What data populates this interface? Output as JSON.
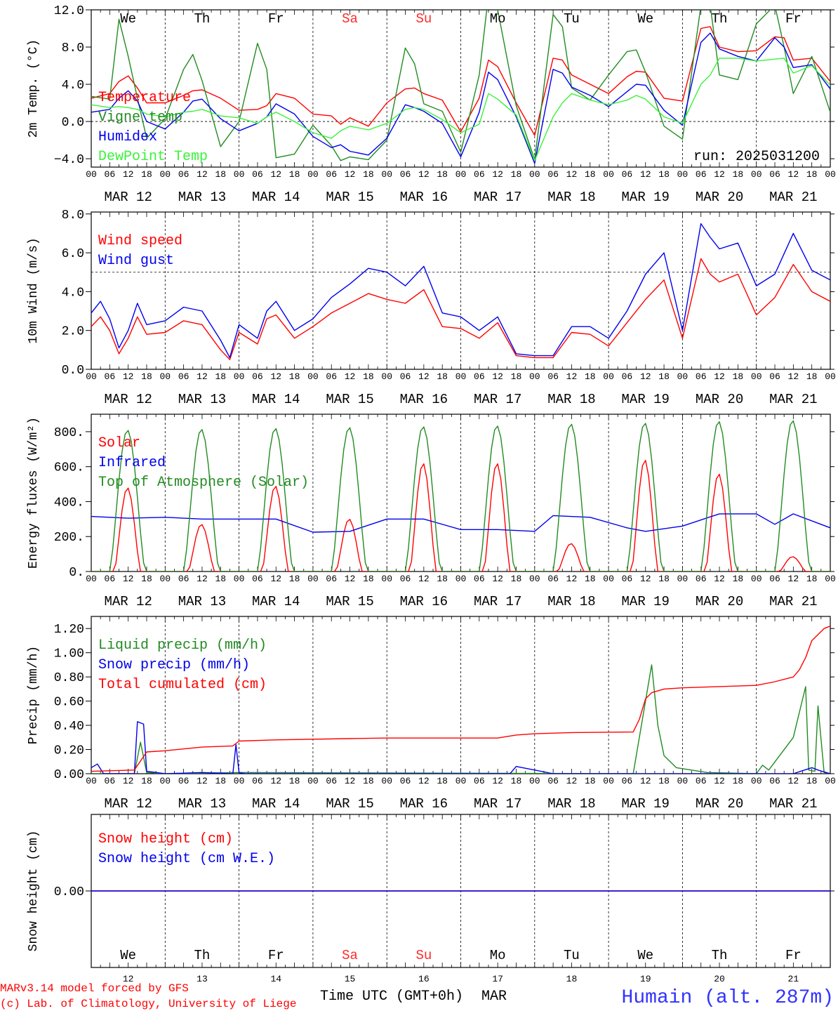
{
  "footer": {
    "credit_line1": "MARv3.14 model forced by GFS",
    "credit_line2": "(c) Lab. of Climatology, University of Liege",
    "xaxis_title": "Time UTC (GMT+0h)",
    "month": "MAR",
    "station": "Humain (alt. 287m)"
  },
  "run_label": "run: 2025031200",
  "days": {
    "dates": [
      "MAR 12",
      "MAR 13",
      "MAR 14",
      "MAR 15",
      "MAR 16",
      "MAR 17",
      "MAR 18",
      "MAR 19",
      "MAR 20",
      "MAR 21"
    ],
    "day_numbers": [
      "12",
      "13",
      "14",
      "15",
      "16",
      "17",
      "18",
      "19",
      "20",
      "21"
    ],
    "weekdays": [
      "We",
      "Th",
      "Fr",
      "Sa",
      "Su",
      "Mo",
      "Tu",
      "We",
      "Th",
      "Fr"
    ],
    "weekend_color": "#ff2a2a",
    "normal_color": "#000000",
    "hour_ticks": [
      "00",
      "06",
      "12",
      "18"
    ],
    "final_tick": "00"
  },
  "chart_data": [
    {
      "type": "line",
      "id": "temp",
      "ylabel": "2m Temp. (°C)",
      "ylim": [
        -5,
        12
      ],
      "yticks": [
        12.0,
        8.0,
        4.0,
        0.0,
        -4.0
      ],
      "ytick_labels": [
        "12.0",
        "8.0",
        "4.0",
        "0.0",
        "−4.0"
      ],
      "ref_line": 0,
      "x_hours": [
        0,
        6,
        9,
        12,
        15,
        18,
        24,
        30,
        33,
        36,
        42,
        48,
        54,
        57,
        60,
        66,
        72,
        78,
        81,
        84,
        90,
        96,
        102,
        105,
        108,
        114,
        120,
        126,
        129,
        132,
        138,
        144,
        150,
        153,
        156,
        162,
        168,
        174,
        177,
        180,
        186,
        192,
        198,
        201,
        204,
        210,
        216,
        222,
        225,
        228,
        234,
        240
      ],
      "series": [
        {
          "name": "Temperature",
          "color": "#ff0000",
          "values": [
            2.5,
            3.0,
            4.3,
            4.9,
            3.6,
            2.0,
            2.0,
            2.8,
            3.3,
            3.4,
            2.5,
            1.2,
            1.3,
            1.7,
            3.0,
            2.5,
            0.8,
            0.6,
            -0.3,
            0.4,
            -0.5,
            2.0,
            3.5,
            3.6,
            3.0,
            2.3,
            -1.1,
            2.5,
            6.6,
            5.9,
            2.0,
            -1.5,
            6.8,
            6.6,
            5.0,
            4.0,
            3.0,
            4.8,
            5.4,
            5.3,
            2.5,
            2.2,
            10.0,
            10.2,
            8.0,
            7.5,
            7.6,
            9.1,
            9.0,
            6.6,
            6.8,
            4.3
          ]
        },
        {
          "name": "Vigne temp",
          "color": "#228b22",
          "values": [
            2.7,
            2.4,
            11.0,
            7.0,
            2.5,
            -1.8,
            0.3,
            5.6,
            7.2,
            4.4,
            -2.7,
            0.0,
            8.4,
            5.6,
            -3.9,
            -3.5,
            -0.4,
            -2.6,
            -4.2,
            -3.8,
            -4.1,
            -2.0,
            7.9,
            6.2,
            1.9,
            1.1,
            -3.3,
            5.0,
            13.6,
            12.0,
            1.7,
            -4.1,
            11.5,
            10.2,
            3.6,
            2.3,
            5.0,
            7.5,
            7.7,
            5.3,
            -0.5,
            -1.9,
            12.5,
            12.5,
            5.0,
            4.5,
            10.5,
            12.5,
            8.0,
            3.0,
            7.0,
            1.0
          ]
        },
        {
          "name": "Humidex",
          "color": "#0000ee",
          "values": [
            1.0,
            1.3,
            2.5,
            3.3,
            2.2,
            0.0,
            -0.8,
            1.0,
            2.2,
            2.4,
            0.3,
            -1.0,
            -0.2,
            0.5,
            1.9,
            0.8,
            -1.6,
            -2.8,
            -2.5,
            -3.2,
            -3.6,
            -1.8,
            1.8,
            1.5,
            1.1,
            -0.2,
            -3.8,
            1.0,
            5.3,
            4.5,
            0.5,
            -4.5,
            5.6,
            5.2,
            3.7,
            2.8,
            1.6,
            3.2,
            4.0,
            3.9,
            1.2,
            -0.4,
            8.5,
            9.5,
            7.8,
            7.0,
            6.5,
            9.0,
            8.0,
            5.8,
            6.1,
            3.5
          ]
        },
        {
          "name": "DewPoint Temp",
          "color": "#3af23a",
          "values": [
            1.8,
            1.5,
            1.6,
            1.5,
            1.3,
            0.8,
            0.5,
            1.0,
            1.1,
            1.3,
            0.6,
            0.4,
            -0.2,
            0.5,
            1.0,
            0.0,
            -1.2,
            -1.8,
            -1.0,
            -0.5,
            -0.9,
            -0.2,
            1.3,
            1.5,
            1.3,
            0.2,
            -1.2,
            -0.3,
            3.0,
            2.4,
            0.7,
            -4.2,
            0.5,
            2.0,
            3.0,
            2.3,
            1.8,
            2.3,
            2.8,
            2.4,
            0.5,
            -0.2,
            4.0,
            5.0,
            6.8,
            6.8,
            6.5,
            6.7,
            6.8,
            5.2,
            6.0,
            3.9
          ]
        }
      ]
    },
    {
      "type": "line",
      "id": "wind",
      "ylabel": "10m Wind (m/s)",
      "ylim": [
        0,
        8
      ],
      "yticks": [
        8.0,
        6.0,
        4.0,
        2.0,
        0.0
      ],
      "ytick_labels": [
        "8.0",
        "6.0",
        "4.0",
        "2.0",
        "0.0"
      ],
      "ref_line": 5,
      "x_hours": [
        0,
        3,
        6,
        9,
        12,
        15,
        18,
        24,
        30,
        36,
        42,
        45,
        48,
        54,
        57,
        60,
        66,
        72,
        78,
        84,
        90,
        96,
        102,
        108,
        114,
        120,
        126,
        132,
        138,
        144,
        150,
        156,
        162,
        168,
        174,
        180,
        186,
        192,
        198,
        201,
        204,
        210,
        216,
        222,
        228,
        234,
        240
      ],
      "series": [
        {
          "name": "Wind speed",
          "color": "#ff0000",
          "values": [
            2.2,
            2.7,
            2.0,
            0.8,
            1.6,
            2.7,
            1.8,
            1.9,
            2.5,
            2.3,
            1.0,
            0.5,
            1.9,
            1.3,
            2.6,
            2.8,
            1.6,
            2.2,
            2.9,
            3.4,
            3.9,
            3.6,
            3.4,
            4.1,
            2.2,
            2.1,
            1.6,
            2.4,
            0.7,
            0.6,
            0.6,
            1.9,
            1.8,
            1.2,
            2.4,
            3.6,
            4.6,
            1.6,
            5.7,
            4.9,
            4.5,
            4.9,
            2.8,
            3.7,
            5.4,
            4.0,
            3.5
          ]
        },
        {
          "name": "Wind gust",
          "color": "#0000ee",
          "values": [
            2.9,
            3.5,
            2.6,
            1.1,
            2.0,
            3.4,
            2.3,
            2.5,
            3.2,
            3.0,
            1.5,
            0.6,
            2.3,
            1.6,
            3.0,
            3.5,
            2.0,
            2.6,
            3.7,
            4.4,
            5.2,
            5.0,
            4.3,
            5.3,
            2.9,
            2.7,
            2.0,
            2.7,
            0.8,
            0.7,
            0.7,
            2.2,
            2.2,
            1.6,
            3.0,
            4.9,
            6.0,
            2.0,
            7.5,
            6.8,
            6.2,
            6.5,
            4.3,
            4.9,
            7.0,
            5.1,
            4.6
          ]
        }
      ]
    },
    {
      "type": "line",
      "id": "energy",
      "ylabel": "Energy fluxes (W/m²)",
      "ylim": [
        0,
        900
      ],
      "yticks": [
        800,
        600,
        400,
        200,
        0
      ],
      "ytick_labels": [
        "800.",
        "600.",
        "400.",
        "200.",
        "0."
      ],
      "series": [
        {
          "name": "Solar",
          "color": "#ff0000",
          "daily_peaks": [
            480,
            270,
            490,
            300,
            620,
            620,
            160,
            640,
            560,
            85
          ]
        },
        {
          "name": "Infrared",
          "color": "#0000ee",
          "x_hours": [
            0,
            12,
            24,
            36,
            48,
            60,
            72,
            84,
            96,
            108,
            120,
            132,
            144,
            150,
            162,
            174,
            180,
            192,
            204,
            216,
            222,
            228,
            240
          ],
          "values": [
            315,
            305,
            310,
            300,
            300,
            300,
            225,
            230,
            300,
            300,
            240,
            240,
            230,
            320,
            310,
            250,
            230,
            260,
            330,
            330,
            270,
            330,
            250
          ]
        },
        {
          "name": "Top of Atmosphere (Solar)",
          "color": "#228b22",
          "daily_peaks": [
            810,
            815,
            820,
            825,
            830,
            835,
            845,
            850,
            860,
            865
          ]
        }
      ]
    },
    {
      "type": "line",
      "id": "precip",
      "ylabel": "Precip (mm/h)",
      "ylim": [
        0,
        1.3
      ],
      "yticks": [
        1.2,
        1.0,
        0.8,
        0.6,
        0.4,
        0.2,
        0.0
      ],
      "ytick_labels": [
        "1.20",
        "1.00",
        "0.80",
        "0.60",
        "0.40",
        "0.20",
        "0.00"
      ],
      "series": [
        {
          "name": "Liquid precip (mm/h)",
          "color": "#228b22",
          "x_hours": [
            0,
            14,
            16,
            18,
            24,
            48,
            176,
            182,
            184,
            186,
            190,
            200,
            216,
            218,
            220,
            228,
            232,
            233,
            235,
            236,
            238,
            240
          ],
          "values": [
            0,
            0,
            0.26,
            0.01,
            0,
            0.01,
            0,
            0.9,
            0.4,
            0.15,
            0.05,
            0.01,
            0,
            0.07,
            0.03,
            0.3,
            0.72,
            0.03,
            0.02,
            0.56,
            0.01,
            0
          ]
        },
        {
          "name": "Snow precip (mm/h)",
          "color": "#0000ee",
          "x_hours": [
            0,
            2,
            4,
            14,
            15,
            17,
            18,
            24,
            36,
            46,
            47,
            48,
            50,
            136,
            138,
            144,
            150,
            174,
            228,
            234,
            236,
            240
          ],
          "values": [
            0.05,
            0.08,
            0,
            0,
            0.43,
            0.41,
            0.02,
            0,
            0.01,
            0,
            0.24,
            0.01,
            0,
            0,
            0.06,
            0.03,
            0,
            0,
            0,
            0.05,
            0.03,
            0
          ]
        },
        {
          "name": "Total cumulated (cm)",
          "color": "#ff0000",
          "x_hours": [
            0,
            14,
            18,
            24,
            36,
            46,
            48,
            60,
            84,
            96,
            120,
            132,
            138,
            144,
            156,
            176,
            178,
            180,
            182,
            186,
            192,
            204,
            216,
            222,
            228,
            230,
            232,
            234,
            238,
            240
          ],
          "values": [
            0.02,
            0.03,
            0.18,
            0.19,
            0.22,
            0.23,
            0.27,
            0.28,
            0.29,
            0.295,
            0.295,
            0.295,
            0.32,
            0.33,
            0.34,
            0.345,
            0.45,
            0.62,
            0.67,
            0.7,
            0.71,
            0.72,
            0.73,
            0.76,
            0.8,
            0.86,
            0.96,
            1.1,
            1.2,
            1.22
          ]
        }
      ]
    },
    {
      "type": "line",
      "id": "snow",
      "ylabel": "Snow height (cm)",
      "ylim": [
        -1,
        1
      ],
      "yticks": [
        0.0
      ],
      "ytick_labels": [
        "0.00"
      ],
      "x_hours": [
        0,
        240
      ],
      "series": [
        {
          "name": "Snow height (cm)",
          "color": "#ff0000",
          "values": [
            0,
            0
          ]
        },
        {
          "name": "Snow height (cm W.E.)",
          "color": "#0000ee",
          "values": [
            0,
            0
          ]
        }
      ]
    }
  ]
}
